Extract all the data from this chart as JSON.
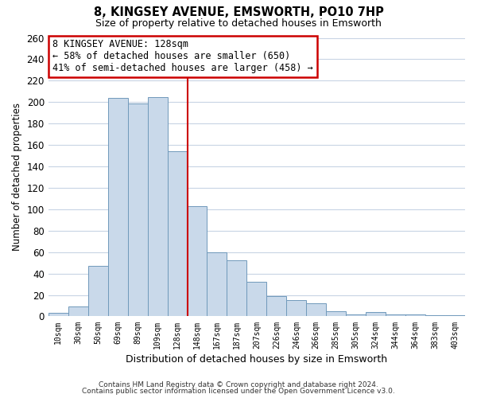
{
  "title": "8, KINGSEY AVENUE, EMSWORTH, PO10 7HP",
  "subtitle": "Size of property relative to detached houses in Emsworth",
  "xlabel": "Distribution of detached houses by size in Emsworth",
  "ylabel": "Number of detached properties",
  "bar_labels": [
    "10sqm",
    "30sqm",
    "50sqm",
    "69sqm",
    "89sqm",
    "109sqm",
    "128sqm",
    "148sqm",
    "167sqm",
    "187sqm",
    "207sqm",
    "226sqm",
    "246sqm",
    "266sqm",
    "285sqm",
    "305sqm",
    "324sqm",
    "344sqm",
    "364sqm",
    "383sqm",
    "403sqm"
  ],
  "bar_heights": [
    3,
    9,
    47,
    204,
    199,
    205,
    154,
    103,
    60,
    52,
    32,
    19,
    15,
    12,
    5,
    2,
    4,
    2,
    2,
    1,
    1
  ],
  "bar_color": "#c9d9ea",
  "bar_edge_color": "#7099bb",
  "highlight_index": 6,
  "highlight_line_color": "#cc0000",
  "annotation_line1": "8 KINGSEY AVENUE: 128sqm",
  "annotation_line2": "← 58% of detached houses are smaller (650)",
  "annotation_line3": "41% of semi-detached houses are larger (458) →",
  "annotation_box_color": "#ffffff",
  "annotation_box_edge": "#cc0000",
  "ylim": [
    0,
    260
  ],
  "yticks": [
    0,
    20,
    40,
    60,
    80,
    100,
    120,
    140,
    160,
    180,
    200,
    220,
    240,
    260
  ],
  "footer_line1": "Contains HM Land Registry data © Crown copyright and database right 2024.",
  "footer_line2": "Contains public sector information licensed under the Open Government Licence v3.0.",
  "bg_color": "#ffffff",
  "grid_color": "#c8d4e4"
}
